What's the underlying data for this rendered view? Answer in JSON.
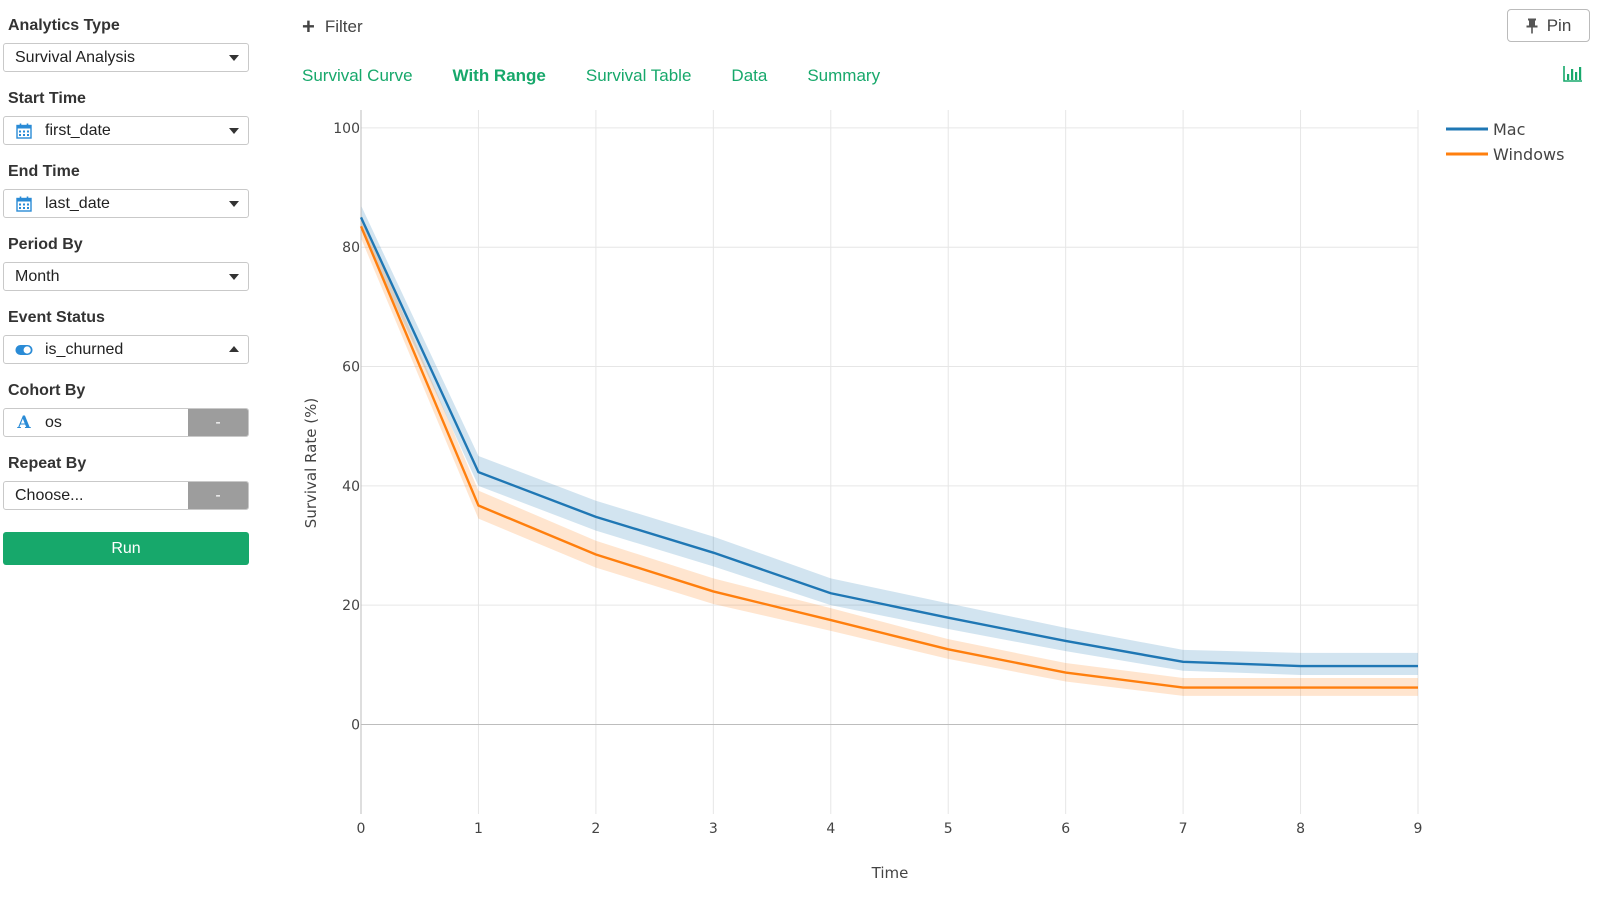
{
  "sidebar": {
    "analytics_type": {
      "label": "Analytics Type",
      "value": "Survival Analysis"
    },
    "start_time": {
      "label": "Start Time",
      "value": "first_date",
      "icon": "calendar-icon"
    },
    "end_time": {
      "label": "End Time",
      "value": "last_date",
      "icon": "calendar-icon"
    },
    "period_by": {
      "label": "Period By",
      "value": "Month"
    },
    "event_status": {
      "label": "Event Status",
      "value": "is_churned",
      "icon": "toggle-icon"
    },
    "cohort_by": {
      "label": "Cohort By",
      "value": "os",
      "icon": "text-type-icon",
      "button": "-"
    },
    "repeat_by": {
      "label": "Repeat By",
      "placeholder": "Choose...",
      "button": "-"
    },
    "run_label": "Run"
  },
  "toolbar": {
    "filter_label": "Filter",
    "pin_label": "Pin"
  },
  "tabs": [
    {
      "label": "Survival Curve",
      "active": false
    },
    {
      "label": "With Range",
      "active": true
    },
    {
      "label": "Survival Table",
      "active": false
    },
    {
      "label": "Data",
      "active": false
    },
    {
      "label": "Summary",
      "active": false
    }
  ],
  "colors": {
    "accent": "#17a86b",
    "mac": "#1f77b4",
    "windows": "#ff7f0e"
  },
  "chart_data": {
    "type": "line",
    "title": "",
    "xlabel": "Time",
    "ylabel": "Survival Rate (%)",
    "x": [
      0,
      1,
      2,
      3,
      4,
      5,
      6,
      7,
      8,
      9
    ],
    "xlim": [
      0,
      9
    ],
    "ylim": [
      -15,
      104
    ],
    "yticks": [
      0,
      20,
      40,
      60,
      80,
      100
    ],
    "grid": true,
    "legend_position": "top-right",
    "series": [
      {
        "name": "Mac",
        "color": "#1f77b4",
        "values": [
          85,
          42.3,
          34.8,
          28.8,
          22,
          17.9,
          14,
          10.5,
          9.8,
          9.8
        ],
        "lower": [
          83,
          40,
          32.5,
          26.5,
          20,
          16,
          12.3,
          9,
          8.3,
          8.3
        ],
        "upper": [
          87,
          45,
          37.5,
          31.5,
          24.5,
          20.3,
          16.2,
          12.5,
          12,
          12
        ]
      },
      {
        "name": "Windows",
        "color": "#ff7f0e",
        "values": [
          83.5,
          36.7,
          28.5,
          22.3,
          17.5,
          12.6,
          8.7,
          6.2,
          6.2,
          6.2
        ],
        "lower": [
          81.5,
          34.5,
          26.3,
          20.2,
          15.7,
          11,
          7.2,
          4.8,
          4.8,
          4.8
        ],
        "upper": [
          85.5,
          39.2,
          30.8,
          24.5,
          19.5,
          14.3,
          10.3,
          7.8,
          7.8,
          7.8
        ]
      }
    ]
  }
}
